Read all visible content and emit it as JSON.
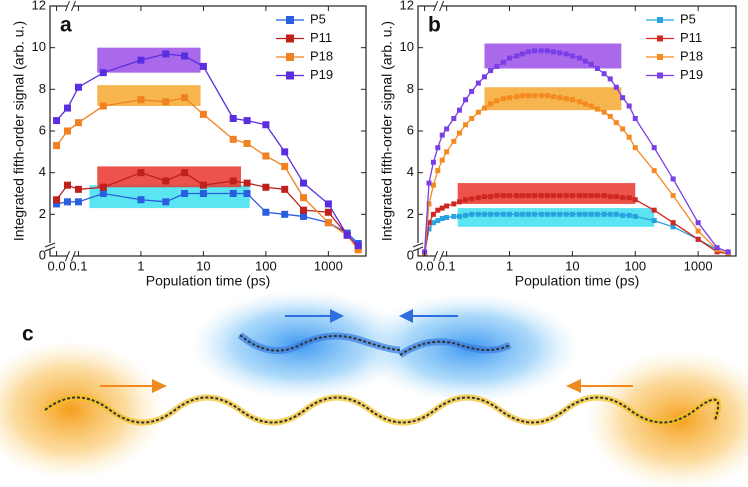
{
  "chart_data": [
    {
      "type": "line",
      "panel_label": "a",
      "x_label": "Population time (ps)",
      "y_label": "Integrated fifth-order signal (arb. u.)",
      "xscale": "linear-log",
      "x_break": 0.1,
      "xlim": [
        -0.03,
        4000
      ],
      "xticks": [
        {
          "value": 0,
          "label": "0.0"
        },
        0.1,
        1,
        10,
        100,
        1000
      ],
      "ylim": [
        0,
        12
      ],
      "yticks": [
        0,
        2,
        4,
        6,
        8,
        10,
        12
      ],
      "legend": "upper right",
      "x": [
        0,
        0.05,
        0.1,
        0.25,
        1,
        2.5,
        5,
        10,
        30,
        50,
        100,
        200,
        400,
        1000,
        2000,
        3000
      ],
      "series": [
        {
          "name": "P5",
          "color": "#2a5de0",
          "values": [
            2.5,
            2.6,
            2.6,
            3.0,
            2.7,
            2.6,
            3.0,
            3.0,
            3.0,
            3.0,
            2.1,
            2.0,
            1.9,
            1.6,
            1.1,
            0.6
          ]
        },
        {
          "name": "P11",
          "color": "#c0201c",
          "values": [
            2.7,
            3.4,
            3.2,
            3.3,
            4.0,
            3.6,
            4.0,
            3.4,
            3.6,
            3.5,
            3.3,
            3.2,
            2.2,
            2.1,
            1.0,
            0.4
          ]
        },
        {
          "name": "P18",
          "color": "#f08020",
          "values": [
            5.3,
            6.0,
            6.4,
            7.2,
            7.5,
            7.4,
            7.6,
            6.8,
            5.6,
            5.4,
            4.8,
            4.3,
            2.8,
            1.6,
            1.0,
            0.3
          ]
        },
        {
          "name": "P19",
          "color": "#5a2ee0",
          "values": [
            6.5,
            7.1,
            8.1,
            8.8,
            9.4,
            9.7,
            9.6,
            9.1,
            6.6,
            6.5,
            6.3,
            5.0,
            3.5,
            2.5,
            1.0,
            0.5
          ]
        }
      ],
      "bands": [
        {
          "color": "#3ee0f0",
          "x": [
            0.15,
            55
          ],
          "y": [
            2.3,
            3.4
          ]
        },
        {
          "color": "#e8352c",
          "x": [
            0.2,
            40
          ],
          "y": [
            3.3,
            4.3
          ]
        },
        {
          "color": "#f5a830",
          "x": [
            0.2,
            9
          ],
          "y": [
            7.2,
            8.2
          ]
        },
        {
          "color": "#9b4fe6",
          "x": [
            0.2,
            9
          ],
          "y": [
            8.8,
            10.0
          ]
        }
      ]
    },
    {
      "type": "line",
      "panel_label": "b",
      "x_label": "Population time (ps)",
      "y_label": "Integrated fifth-order signal (arb. u.)",
      "xscale": "linear-log",
      "x_break": 0.1,
      "xlim": [
        -0.03,
        4000
      ],
      "xticks": [
        {
          "value": 0,
          "label": "0.0"
        },
        0.1,
        1,
        10,
        100,
        1000
      ],
      "ylim": [
        0,
        12
      ],
      "yticks": [
        0,
        2,
        4,
        6,
        8,
        10,
        12
      ],
      "legend": "upper right",
      "x": [
        0,
        0.02,
        0.04,
        0.06,
        0.08,
        0.1,
        0.13,
        0.16,
        0.2,
        0.25,
        0.32,
        0.4,
        0.5,
        0.63,
        0.8,
        1,
        1.3,
        1.6,
        2,
        2.5,
        3.2,
        4,
        5,
        6.3,
        8,
        10,
        13,
        16,
        20,
        25,
        32,
        40,
        50,
        63,
        80,
        100,
        200,
        400,
        1000,
        2000,
        3000
      ],
      "series": [
        {
          "name": "P5",
          "color": "#29a3e0",
          "values": [
            0.1,
            1.3,
            1.6,
            1.7,
            1.8,
            1.85,
            1.9,
            1.9,
            1.95,
            2.0,
            2.0,
            2.0,
            2.0,
            2.0,
            2.0,
            2.0,
            2.0,
            2.0,
            2.0,
            2.0,
            2.0,
            2.0,
            2.0,
            2.0,
            2.0,
            2.0,
            2.0,
            2.0,
            2.0,
            2.0,
            2.0,
            2.0,
            2.0,
            1.95,
            1.95,
            1.9,
            1.7,
            1.4,
            0.8,
            0.3,
            0.1
          ]
        },
        {
          "name": "P11",
          "color": "#d02820",
          "values": [
            0.1,
            1.6,
            2.0,
            2.2,
            2.3,
            2.4,
            2.5,
            2.6,
            2.7,
            2.75,
            2.8,
            2.85,
            2.85,
            2.9,
            2.9,
            2.9,
            2.9,
            2.9,
            2.9,
            2.9,
            2.9,
            2.9,
            2.9,
            2.9,
            2.9,
            2.9,
            2.9,
            2.9,
            2.9,
            2.9,
            2.9,
            2.85,
            2.85,
            2.8,
            2.8,
            2.7,
            2.2,
            1.6,
            0.8,
            0.2,
            0.1
          ]
        },
        {
          "name": "P18",
          "color": "#f58a20",
          "values": [
            0.1,
            2.5,
            3.4,
            4.1,
            4.6,
            5.0,
            5.5,
            5.9,
            6.3,
            6.6,
            6.9,
            7.1,
            7.3,
            7.45,
            7.55,
            7.6,
            7.65,
            7.7,
            7.7,
            7.7,
            7.7,
            7.7,
            7.65,
            7.6,
            7.55,
            7.5,
            7.4,
            7.3,
            7.2,
            7.05,
            6.9,
            6.7,
            6.4,
            6.1,
            5.7,
            5.2,
            4.1,
            2.9,
            1.2,
            0.3,
            0.1
          ]
        },
        {
          "name": "P19",
          "color": "#7a3ee6",
          "values": [
            0.2,
            3.5,
            4.5,
            5.2,
            5.8,
            6.1,
            6.6,
            7.0,
            7.5,
            7.9,
            8.3,
            8.6,
            8.9,
            9.1,
            9.3,
            9.5,
            9.6,
            9.7,
            9.8,
            9.85,
            9.85,
            9.85,
            9.8,
            9.75,
            9.7,
            9.6,
            9.5,
            9.35,
            9.2,
            9.0,
            8.75,
            8.5,
            8.1,
            7.6,
            7.2,
            6.6,
            5.2,
            3.7,
            1.6,
            0.4,
            0.2
          ]
        }
      ],
      "bands": [
        {
          "color": "#3ee0f0",
          "x": [
            0.15,
            200
          ],
          "y": [
            1.4,
            2.3
          ]
        },
        {
          "color": "#e8352c",
          "x": [
            0.15,
            100
          ],
          "y": [
            2.5,
            3.5
          ]
        },
        {
          "color": "#f5a830",
          "x": [
            0.4,
            60
          ],
          "y": [
            7.0,
            8.1
          ]
        },
        {
          "color": "#9b4fe6",
          "x": [
            0.4,
            60
          ],
          "y": [
            9.0,
            10.2
          ]
        }
      ]
    }
  ],
  "illustration": {
    "label": "c"
  }
}
